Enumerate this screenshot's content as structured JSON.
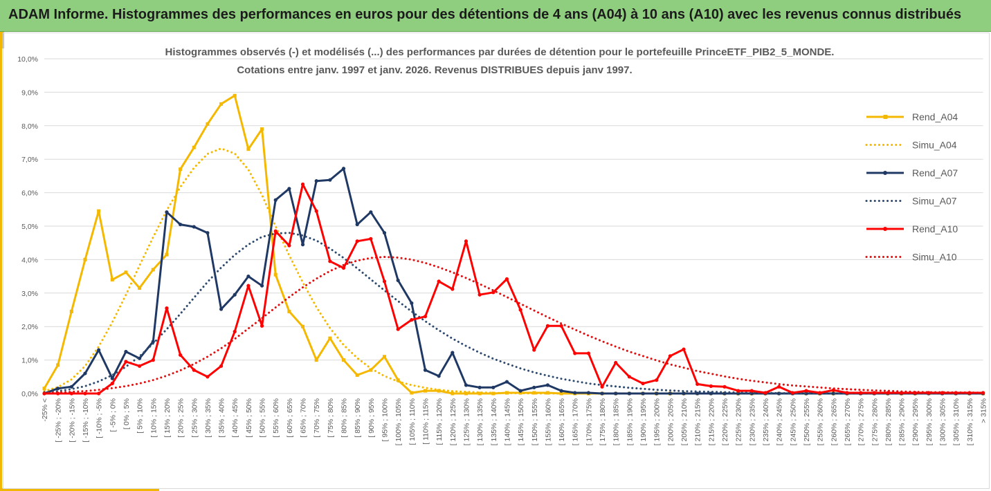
{
  "banner": {
    "title": "ADAM Informe. Histogrammes des performances en euros pour des détentions de 4 ans (A04) à 10 ans (A10) avec les revenus connus distribués"
  },
  "colors": {
    "banner_bg": "#8fce7e",
    "accent": "#f2b705",
    "a04": "#f5b800",
    "a07": "#1f3864",
    "a07_sim": "#2e4a6e",
    "a10": "#ff0000",
    "a10_sim": "#e01010",
    "grid": "#d9d9d9",
    "text": "#595959"
  },
  "chart_data": {
    "type": "line",
    "title_lines": [
      "Histogrammes observés (-) et modélisés (...) des performances par durées de détention pour  le portefeuille PrinceETF_PIB2_5_MONDE.",
      "Cotations entre janv. 1997 et janv. 2026. Revenus DISTRIBUES depuis janv 1997."
    ],
    "ylim": [
      0,
      10
    ],
    "y_ticks": [
      "0,0%",
      "1,0%",
      "2,0%",
      "3,0%",
      "4,0%",
      "5,0%",
      "6,0%",
      "7,0%",
      "8,0%",
      "9,0%",
      "10,0%"
    ],
    "grid": true,
    "legend_position": "right",
    "categories": [
      "-25% <",
      "[ -25% ; -20%",
      "[ -20% ; -15%",
      "[ -15% ; -10%",
      "[ -10% ; -5%",
      "[ -5% ; 0%",
      "[ 0% ; 5%",
      "[ 5% ; 10%",
      "[ 10% ; 15%",
      "[ 15% ; 20%",
      "[ 20% ; 25%",
      "[ 25% ; 30%",
      "[ 30% ; 35%",
      "[ 35% ; 40%",
      "[ 40% ; 45%",
      "[ 45% ; 50%",
      "[ 50% ; 55%",
      "[ 55% ; 60%",
      "[ 60% ; 65%",
      "[ 65% ; 70%",
      "[ 70% ; 75%",
      "[ 75% ; 80%",
      "[ 80% ; 85%",
      "[ 85% ; 90%",
      "[ 90% ; 95%",
      "[ 95% ; 100%",
      "[ 100% ; 105%",
      "[ 105% ; 110%",
      "[ 110% ; 115%",
      "[ 115% ; 120%",
      "[ 120% ; 125%",
      "[ 125% ; 130%",
      "[ 130% ; 135%",
      "[ 135% ; 140%",
      "[ 140% ; 145%",
      "[ 145% ; 150%",
      "[ 150% ; 155%",
      "[ 155% ; 160%",
      "[ 160% ; 165%",
      "[ 165% ; 170%",
      "[ 170% ; 175%",
      "[ 175% ; 180%",
      "[ 180% ; 185%",
      "[ 185% ; 190%",
      "[ 190% ; 195%",
      "[ 195% ; 200%",
      "[ 200% ; 205%",
      "[ 205% ; 210%",
      "[ 210% ; 215%",
      "[ 215% ; 220%",
      "[ 220% ; 225%",
      "[ 225% ; 230%",
      "[ 230% ; 235%",
      "[ 235% ; 240%",
      "[ 240% ; 245%",
      "[ 245% ; 250%",
      "[ 250% ; 255%",
      "[ 255% ; 260%",
      "[ 260% ; 265%",
      "[ 265% ; 270%",
      "[ 270% ; 275%",
      "[ 275% ; 280%",
      "[ 280% ; 285%",
      "[ 285% ; 290%",
      "[ 290% ; 295%",
      "[ 295% ; 300%",
      "[ 300% ; 305%",
      "[ 305% ; 310%",
      "[ 310% ; 315%",
      "> 315%"
    ],
    "series": [
      {
        "name": "Rend_A04",
        "style": "solid",
        "marker": "square",
        "color": "#f5b800",
        "values": [
          0.15,
          0.85,
          2.45,
          4.0,
          5.45,
          3.4,
          3.62,
          3.15,
          3.7,
          4.15,
          6.7,
          7.35,
          8.05,
          8.65,
          8.9,
          7.3,
          7.9,
          3.55,
          2.45,
          2.0,
          1.0,
          1.65,
          1.0,
          0.55,
          0.7,
          1.1,
          0.4,
          0.02,
          0.08,
          0.08,
          0.0,
          0.0,
          0.0,
          0.0,
          0.02,
          0.02,
          0.02,
          0.02,
          0.0,
          0,
          0,
          0,
          0,
          0,
          0,
          0,
          0,
          0,
          0,
          0,
          0,
          0,
          0,
          0,
          0,
          0,
          0,
          0,
          0,
          0,
          0,
          0,
          0,
          0,
          0,
          0,
          0,
          0,
          0,
          0
        ]
      },
      {
        "name": "Simu_A04",
        "style": "dotted",
        "marker": "none",
        "color": "#f5b800",
        "values": [
          0.07,
          0.19,
          0.42,
          0.82,
          1.4,
          2.13,
          2.95,
          3.82,
          4.67,
          5.47,
          6.17,
          6.74,
          7.16,
          7.32,
          7.17,
          6.69,
          5.93,
          5.0,
          4.13,
          3.32,
          2.58,
          1.95,
          1.45,
          1.06,
          0.75,
          0.52,
          0.36,
          0.25,
          0.17,
          0.11,
          0.07,
          0.05,
          0.03,
          0.02,
          0.01,
          0.01,
          0,
          0,
          0,
          0,
          0,
          0,
          0,
          0,
          0,
          0,
          0,
          0,
          0,
          0,
          0,
          0,
          0,
          0,
          0,
          0,
          0,
          0,
          0,
          0,
          0,
          0,
          0,
          0,
          0,
          0,
          0,
          0,
          0,
          0
        ]
      },
      {
        "name": "Rend_A07",
        "style": "solid",
        "marker": "circle",
        "color": "#1f3864",
        "values": [
          0.0,
          0.15,
          0.2,
          0.6,
          1.3,
          0.45,
          1.25,
          1.05,
          1.55,
          5.42,
          5.05,
          4.98,
          4.8,
          2.52,
          2.95,
          3.5,
          3.22,
          5.78,
          6.12,
          4.45,
          6.35,
          6.38,
          6.72,
          5.05,
          5.42,
          4.8,
          3.38,
          2.7,
          0.7,
          0.52,
          1.22,
          0.25,
          0.18,
          0.18,
          0.35,
          0.08,
          0.18,
          0.25,
          0.08,
          0.02,
          0.02,
          0.0,
          0.0,
          0.0,
          0.0,
          0.0,
          0.0,
          0.0,
          0.0,
          0.0,
          0,
          0,
          0,
          0,
          0,
          0,
          0,
          0,
          0,
          0,
          0,
          0,
          0,
          0,
          0,
          0,
          0,
          0,
          0,
          0
        ]
      },
      {
        "name": "Simu_A07",
        "style": "dotted",
        "marker": "none",
        "color": "#2e4a6e",
        "values": [
          0.04,
          0.07,
          0.13,
          0.22,
          0.36,
          0.55,
          0.8,
          1.11,
          1.49,
          1.92,
          2.38,
          2.86,
          3.33,
          3.76,
          4.14,
          4.45,
          4.68,
          4.78,
          4.8,
          4.72,
          4.57,
          4.33,
          4.05,
          3.74,
          3.41,
          3.08,
          2.76,
          2.45,
          2.16,
          1.89,
          1.64,
          1.42,
          1.22,
          1.04,
          0.89,
          0.75,
          0.63,
          0.53,
          0.44,
          0.37,
          0.3,
          0.25,
          0.21,
          0.17,
          0.14,
          0.11,
          0.09,
          0.07,
          0.06,
          0.05,
          0.04,
          0.03,
          0.02,
          0.02,
          0.01,
          0.01,
          0.01,
          0.01,
          0,
          0,
          0,
          0,
          0,
          0,
          0,
          0,
          0,
          0,
          0,
          0
        ]
      },
      {
        "name": "Rend_A10",
        "style": "solid",
        "marker": "circle",
        "color": "#ff0000",
        "values": [
          0.0,
          0.0,
          0.0,
          0.0,
          0.0,
          0.3,
          0.95,
          0.82,
          1.0,
          2.55,
          1.15,
          0.7,
          0.5,
          0.82,
          1.85,
          3.22,
          2.02,
          4.85,
          4.42,
          6.25,
          5.45,
          3.95,
          3.75,
          4.55,
          4.62,
          3.35,
          1.92,
          2.2,
          2.3,
          3.35,
          3.12,
          4.55,
          2.95,
          3.02,
          3.42,
          2.5,
          1.3,
          2.02,
          2.02,
          1.2,
          1.2,
          0.2,
          0.92,
          0.5,
          0.3,
          0.4,
          1.12,
          1.32,
          0.28,
          0.22,
          0.2,
          0.08,
          0.08,
          0.02,
          0.2,
          0.02,
          0.08,
          0.02,
          0.1,
          0.02,
          0.02,
          0.02,
          0.02,
          0.02,
          0.02,
          0.02,
          0.02,
          0.02,
          0.02,
          0.02
        ]
      },
      {
        "name": "Simu_A10",
        "style": "dotted",
        "marker": "none",
        "color": "#e01010",
        "values": [
          0.02,
          0.03,
          0.05,
          0.07,
          0.11,
          0.16,
          0.22,
          0.3,
          0.4,
          0.53,
          0.69,
          0.88,
          1.1,
          1.35,
          1.63,
          1.94,
          2.25,
          2.57,
          2.88,
          3.17,
          3.43,
          3.66,
          3.84,
          3.97,
          4.05,
          4.08,
          4.06,
          4.0,
          3.9,
          3.77,
          3.62,
          3.45,
          3.27,
          3.08,
          2.88,
          2.68,
          2.48,
          2.28,
          2.09,
          1.91,
          1.73,
          1.56,
          1.4,
          1.25,
          1.12,
          0.99,
          0.87,
          0.77,
          0.67,
          0.59,
          0.51,
          0.44,
          0.38,
          0.33,
          0.28,
          0.24,
          0.21,
          0.18,
          0.15,
          0.13,
          0.11,
          0.09,
          0.08,
          0.06,
          0.05,
          0.04,
          0.04,
          0.03,
          0.03,
          0.02
        ]
      }
    ]
  }
}
